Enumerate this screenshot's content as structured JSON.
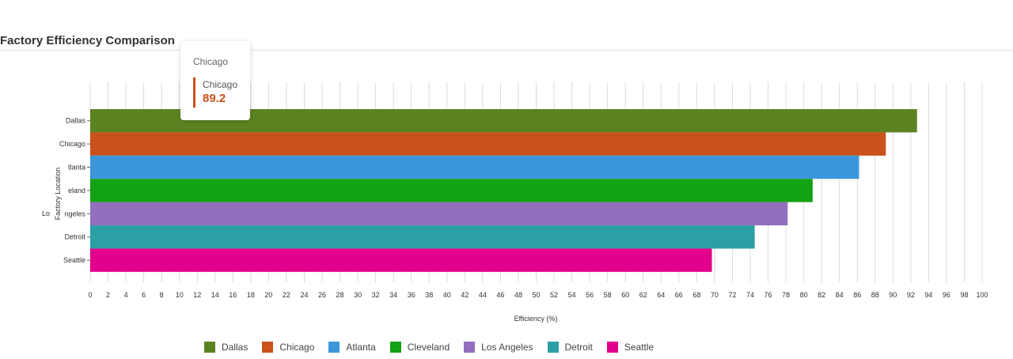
{
  "title": "Factory Efficiency Comparison",
  "tooltip": {
    "header": "Chicago",
    "series": "Chicago",
    "value": "89.2",
    "color": "#c9511b"
  },
  "chart_data": {
    "type": "bar",
    "orientation": "horizontal",
    "categories": [
      "Dallas",
      "Chicago",
      "Atlanta",
      "Cleveland",
      "Los Angeles",
      "Detroit",
      "Seattle"
    ],
    "tick_labels_shown": [
      "Dallas",
      "Chicago",
      "tlanta",
      "eland",
      "ngeles",
      "Detroit",
      "Seattle"
    ],
    "values": [
      92.7,
      89.2,
      86.2,
      81.0,
      78.2,
      74.5,
      69.7
    ],
    "colors": [
      "#5b8220",
      "#c9511b",
      "#3b96dc",
      "#13a213",
      "#9270be",
      "#2c9fa6",
      "#e3008c"
    ],
    "xlabel": "Efficiency (%)",
    "ylabel": "Factory Location",
    "xlim": [
      0,
      100
    ],
    "x_tick_step": 2,
    "grid": true,
    "legend": "bottom"
  }
}
